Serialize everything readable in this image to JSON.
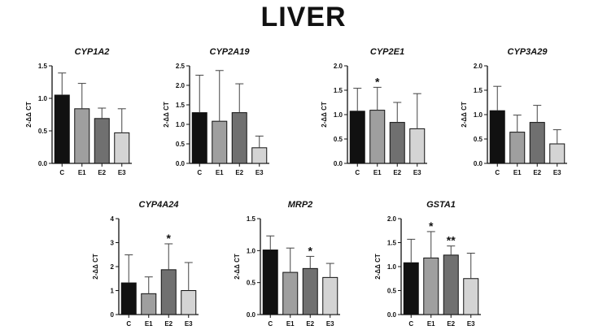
{
  "title": "LIVER",
  "colors": {
    "C": "#111111",
    "E1": "#9f9f9f",
    "E2": "#707070",
    "E3": "#d4d4d4",
    "axis": "#111111",
    "error": "#444444"
  },
  "chart_data": [
    {
      "type": "bar",
      "title": "CYP1A2",
      "ylabel": "2-ΔΔ CT",
      "ylim": [
        0,
        1.5
      ],
      "yticks": [
        "0.0",
        "0.5",
        "1.0",
        "1.5"
      ],
      "ytick_values": [
        0,
        0.5,
        1.0,
        1.5
      ],
      "categories": [
        "C",
        "E1",
        "E2",
        "E3"
      ],
      "values": [
        1.05,
        0.84,
        0.69,
        0.47
      ],
      "errors": [
        0.34,
        0.39,
        0.16,
        0.37
      ],
      "significance": [
        "",
        "",
        "",
        ""
      ]
    },
    {
      "type": "bar",
      "title": "CYP2A19",
      "ylabel": "2-ΔΔ CT",
      "ylim": [
        0,
        2.5
      ],
      "yticks": [
        "0.0",
        "0.5",
        "1.0",
        "1.5",
        "2.0",
        "2.5"
      ],
      "ytick_values": [
        0,
        0.5,
        1.0,
        1.5,
        2.0,
        2.5
      ],
      "categories": [
        "C",
        "E1",
        "E2",
        "E3"
      ],
      "values": [
        1.3,
        1.08,
        1.3,
        0.4
      ],
      "errors": [
        0.96,
        1.3,
        0.74,
        0.3
      ],
      "significance": [
        "",
        "",
        "",
        ""
      ]
    },
    {
      "type": "bar",
      "title": "CYP2E1",
      "ylabel": "2-ΔΔ CT",
      "ylim": [
        0,
        2.0
      ],
      "yticks": [
        "0.0",
        "0.5",
        "1.0",
        "1.5",
        "2.0"
      ],
      "ytick_values": [
        0,
        0.5,
        1.0,
        1.5,
        2.0
      ],
      "categories": [
        "C",
        "E1",
        "E2",
        "E3"
      ],
      "values": [
        1.07,
        1.09,
        0.84,
        0.71
      ],
      "errors": [
        0.47,
        0.47,
        0.41,
        0.72
      ],
      "significance": [
        "",
        "*",
        "",
        ""
      ]
    },
    {
      "type": "bar",
      "title": "CYP3A29",
      "ylabel": "2-ΔΔ CT",
      "ylim": [
        0,
        2.0
      ],
      "yticks": [
        "0.0",
        "0.5",
        "1.0",
        "1.5",
        "2.0"
      ],
      "ytick_values": [
        0,
        0.5,
        1.0,
        1.5,
        2.0
      ],
      "categories": [
        "C",
        "E1",
        "E2",
        "E3"
      ],
      "values": [
        1.08,
        0.64,
        0.84,
        0.4
      ],
      "errors": [
        0.5,
        0.35,
        0.35,
        0.29
      ],
      "significance": [
        "",
        "",
        "",
        ""
      ]
    },
    {
      "type": "bar",
      "title": "CYP4A24",
      "ylabel": "2-ΔΔ CT",
      "ylim": [
        0,
        4
      ],
      "yticks": [
        "0",
        "1",
        "2",
        "3",
        "4"
      ],
      "ytick_values": [
        0,
        1,
        2,
        3,
        4
      ],
      "categories": [
        "C",
        "E1",
        "E2",
        "E3"
      ],
      "values": [
        1.32,
        0.87,
        1.87,
        1.0
      ],
      "errors": [
        1.17,
        0.7,
        1.08,
        1.17
      ],
      "significance": [
        "",
        "",
        "*",
        ""
      ]
    },
    {
      "type": "bar",
      "title": "MRP2",
      "ylabel": "2-ΔΔ CT",
      "ylim": [
        0,
        1.5
      ],
      "yticks": [
        "0.0",
        "0.5",
        "1.0",
        "1.5"
      ],
      "ytick_values": [
        0,
        0.5,
        1.0,
        1.5
      ],
      "categories": [
        "C",
        "E1",
        "E2",
        "E3"
      ],
      "values": [
        1.01,
        0.66,
        0.72,
        0.58
      ],
      "errors": [
        0.22,
        0.38,
        0.19,
        0.22
      ],
      "significance": [
        "",
        "",
        "*",
        ""
      ]
    },
    {
      "type": "bar",
      "title": "GSTA1",
      "ylabel": "2-ΔΔ CT",
      "ylim": [
        0,
        2.0
      ],
      "yticks": [
        "0.0",
        "0.5",
        "1.0",
        "1.5",
        "2.0"
      ],
      "ytick_values": [
        0,
        0.5,
        1.0,
        1.5,
        2.0
      ],
      "categories": [
        "C",
        "E1",
        "E2",
        "E3"
      ],
      "values": [
        1.08,
        1.18,
        1.24,
        0.75
      ],
      "errors": [
        0.49,
        0.55,
        0.19,
        0.53
      ],
      "significance": [
        "",
        "*",
        "**",
        ""
      ]
    }
  ]
}
